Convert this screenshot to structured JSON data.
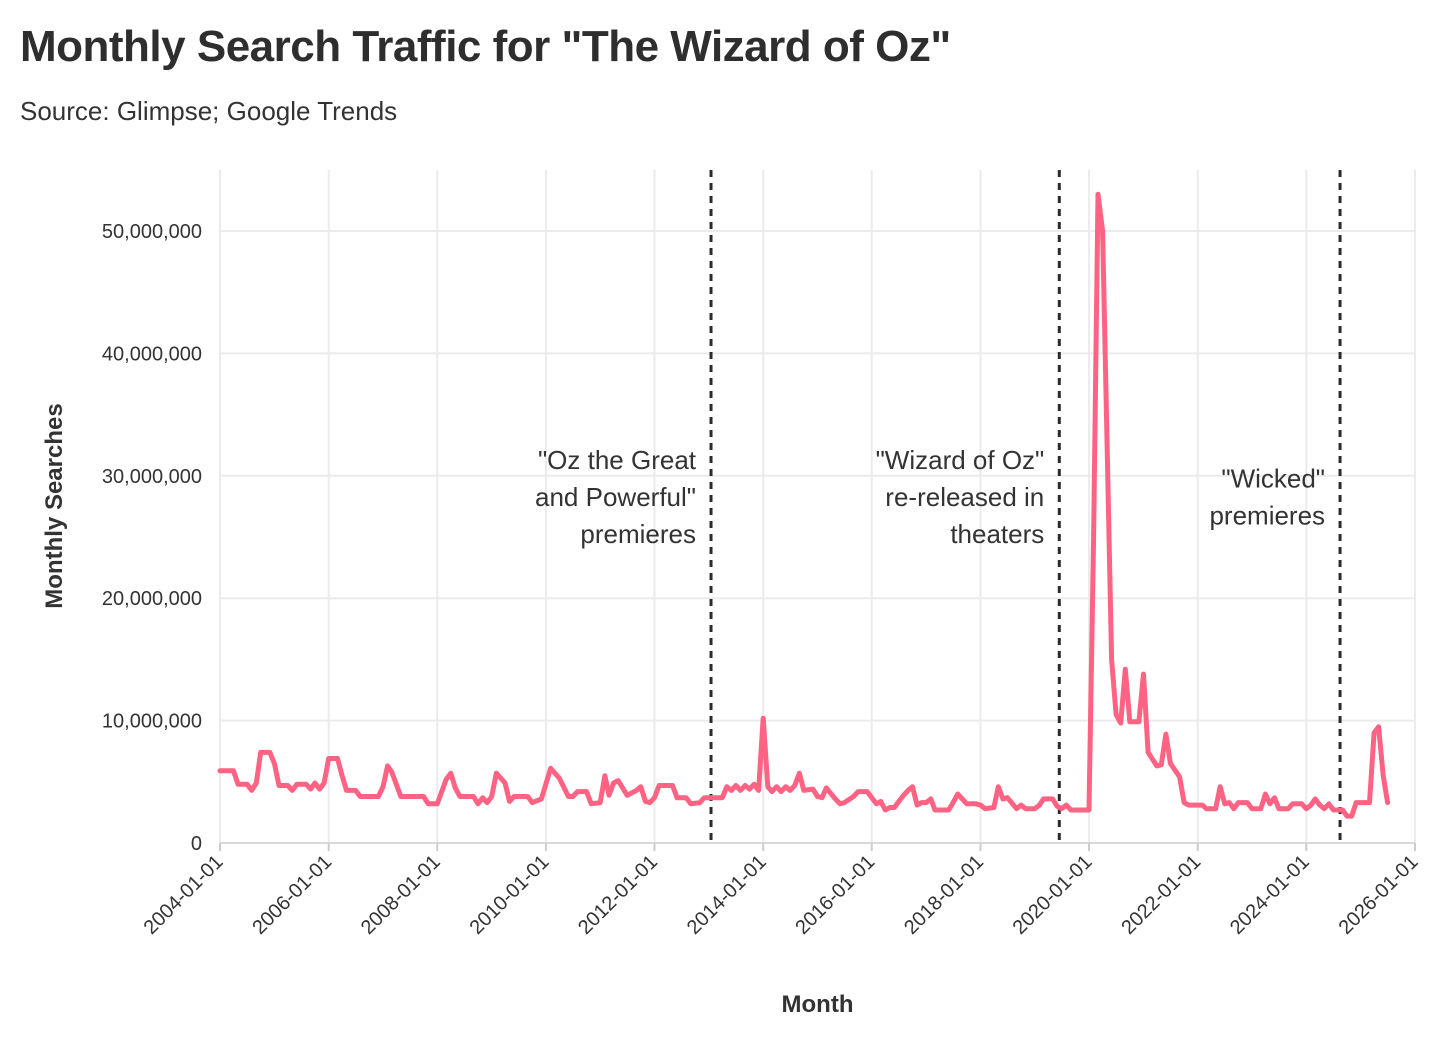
{
  "header": {
    "title": "Monthly Search Traffic for \"The Wizard of Oz\"",
    "subtitle": "Source: Glimpse; Google Trends"
  },
  "chart_data": {
    "type": "line",
    "xlabel": "Month",
    "ylabel": "Monthly Searches",
    "xlim": [
      "2004-01-01",
      "2026-01-01"
    ],
    "ylim": [
      0,
      55000000
    ],
    "x_ticks": [
      "2004-01-01",
      "2006-01-01",
      "2008-01-01",
      "2010-01-01",
      "2012-01-01",
      "2014-01-01",
      "2016-01-01",
      "2018-01-01",
      "2020-01-01",
      "2022-01-01",
      "2024-01-01",
      "2026-01-01"
    ],
    "y_ticks": [
      0,
      10000000,
      20000000,
      30000000,
      40000000,
      50000000
    ],
    "y_tick_labels": [
      "0",
      "10,000,000",
      "20,000,000",
      "30,000,000",
      "40,000,000",
      "50,000,000"
    ],
    "grid": true,
    "line_color": "#ff6384",
    "series": [
      {
        "points": [
          [
            "2004-01-01",
            5900000
          ],
          [
            "2004-04-01",
            5900000
          ],
          [
            "2004-05-01",
            4800000
          ],
          [
            "2004-07-01",
            4800000
          ],
          [
            "2004-08-01",
            4300000
          ],
          [
            "2004-09-01",
            4900000
          ],
          [
            "2004-10-01",
            7400000
          ],
          [
            "2004-12-01",
            7400000
          ],
          [
            "2005-01-01",
            6500000
          ],
          [
            "2005-02-01",
            4700000
          ],
          [
            "2005-04-01",
            4700000
          ],
          [
            "2005-05-01",
            4300000
          ],
          [
            "2005-06-01",
            4800000
          ],
          [
            "2005-08-01",
            4800000
          ],
          [
            "2005-09-01",
            4400000
          ],
          [
            "2005-10-01",
            4900000
          ],
          [
            "2005-11-01",
            4400000
          ],
          [
            "2005-12-01",
            4900000
          ],
          [
            "2006-01-01",
            6900000
          ],
          [
            "2006-03-01",
            6900000
          ],
          [
            "2006-04-01",
            5500000
          ],
          [
            "2006-05-01",
            4300000
          ],
          [
            "2006-07-01",
            4300000
          ],
          [
            "2006-08-01",
            3800000
          ],
          [
            "2006-12-01",
            3800000
          ],
          [
            "2007-01-01",
            4600000
          ],
          [
            "2007-02-01",
            6300000
          ],
          [
            "2007-03-01",
            5800000
          ],
          [
            "2007-05-01",
            3800000
          ],
          [
            "2007-10-01",
            3800000
          ],
          [
            "2007-11-01",
            3200000
          ],
          [
            "2008-01-01",
            3200000
          ],
          [
            "2008-03-01",
            5200000
          ],
          [
            "2008-04-01",
            5700000
          ],
          [
            "2008-05-01",
            4500000
          ],
          [
            "2008-06-01",
            3800000
          ],
          [
            "2008-09-01",
            3800000
          ],
          [
            "2008-10-01",
            3200000
          ],
          [
            "2008-11-01",
            3700000
          ],
          [
            "2008-12-01",
            3300000
          ],
          [
            "2009-01-01",
            3800000
          ],
          [
            "2009-02-01",
            5700000
          ],
          [
            "2009-04-01",
            4900000
          ],
          [
            "2009-05-01",
            3400000
          ],
          [
            "2009-06-01",
            3800000
          ],
          [
            "2009-09-01",
            3800000
          ],
          [
            "2009-10-01",
            3300000
          ],
          [
            "2009-12-01",
            3600000
          ],
          [
            "2010-02-01",
            6100000
          ],
          [
            "2010-04-01",
            5300000
          ],
          [
            "2010-06-01",
            3800000
          ],
          [
            "2010-07-01",
            3800000
          ],
          [
            "2010-08-01",
            4200000
          ],
          [
            "2010-10-01",
            4200000
          ],
          [
            "2010-11-01",
            3200000
          ],
          [
            "2011-01-01",
            3300000
          ],
          [
            "2011-02-01",
            5500000
          ],
          [
            "2011-03-01",
            3900000
          ],
          [
            "2011-04-01",
            4900000
          ],
          [
            "2011-05-01",
            5100000
          ],
          [
            "2011-07-01",
            3900000
          ],
          [
            "2011-09-01",
            4300000
          ],
          [
            "2011-10-01",
            4600000
          ],
          [
            "2011-11-01",
            3400000
          ],
          [
            "2011-12-01",
            3300000
          ],
          [
            "2012-01-01",
            3700000
          ],
          [
            "2012-02-01",
            4700000
          ],
          [
            "2012-05-01",
            4700000
          ],
          [
            "2012-06-01",
            3700000
          ],
          [
            "2012-08-01",
            3700000
          ],
          [
            "2012-09-01",
            3200000
          ],
          [
            "2012-11-01",
            3300000
          ],
          [
            "2012-12-01",
            3700000
          ],
          [
            "2013-04-01",
            3700000
          ],
          [
            "2013-05-01",
            4600000
          ],
          [
            "2013-06-01",
            4300000
          ],
          [
            "2013-07-01",
            4700000
          ],
          [
            "2013-08-01",
            4300000
          ],
          [
            "2013-09-01",
            4700000
          ],
          [
            "2013-10-01",
            4400000
          ],
          [
            "2013-11-01",
            4800000
          ],
          [
            "2013-12-01",
            4300000
          ],
          [
            "2014-01-01",
            10200000
          ],
          [
            "2014-02-01",
            4600000
          ],
          [
            "2014-03-01",
            4200000
          ],
          [
            "2014-04-01",
            4600000
          ],
          [
            "2014-05-01",
            4200000
          ],
          [
            "2014-06-01",
            4600000
          ],
          [
            "2014-07-01",
            4300000
          ],
          [
            "2014-08-01",
            4700000
          ],
          [
            "2014-09-01",
            5700000
          ],
          [
            "2014-10-01",
            4300000
          ],
          [
            "2014-12-01",
            4400000
          ],
          [
            "2015-01-01",
            3800000
          ],
          [
            "2015-02-01",
            3700000
          ],
          [
            "2015-03-01",
            4500000
          ],
          [
            "2015-05-01",
            3600000
          ],
          [
            "2015-06-01",
            3200000
          ],
          [
            "2015-07-01",
            3300000
          ],
          [
            "2015-09-01",
            3800000
          ],
          [
            "2015-10-01",
            4200000
          ],
          [
            "2015-12-01",
            4200000
          ],
          [
            "2016-01-01",
            3700000
          ],
          [
            "2016-02-01",
            3200000
          ],
          [
            "2016-03-01",
            3400000
          ],
          [
            "2016-04-01",
            2700000
          ],
          [
            "2016-05-01",
            2900000
          ],
          [
            "2016-06-01",
            2900000
          ],
          [
            "2016-07-01",
            3400000
          ],
          [
            "2016-08-01",
            3900000
          ],
          [
            "2016-09-01",
            4300000
          ],
          [
            "2016-10-01",
            4600000
          ],
          [
            "2016-11-01",
            3100000
          ],
          [
            "2016-12-01",
            3300000
          ],
          [
            "2017-01-01",
            3300000
          ],
          [
            "2017-02-01",
            3600000
          ],
          [
            "2017-03-01",
            2700000
          ],
          [
            "2017-06-01",
            2700000
          ],
          [
            "2017-07-01",
            3300000
          ],
          [
            "2017-08-01",
            4000000
          ],
          [
            "2017-10-01",
            3200000
          ],
          [
            "2017-12-01",
            3200000
          ],
          [
            "2018-01-01",
            3100000
          ],
          [
            "2018-02-01",
            2800000
          ],
          [
            "2018-04-01",
            2900000
          ],
          [
            "2018-05-01",
            4600000
          ],
          [
            "2018-06-01",
            3600000
          ],
          [
            "2018-07-01",
            3700000
          ],
          [
            "2018-09-01",
            2800000
          ],
          [
            "2018-10-01",
            3100000
          ],
          [
            "2018-11-01",
            2800000
          ],
          [
            "2019-01-01",
            2800000
          ],
          [
            "2019-02-01",
            3100000
          ],
          [
            "2019-03-01",
            3600000
          ],
          [
            "2019-05-01",
            3600000
          ],
          [
            "2019-06-01",
            3000000
          ],
          [
            "2019-07-01",
            2800000
          ],
          [
            "2019-08-01",
            3100000
          ],
          [
            "2019-09-01",
            2700000
          ],
          [
            "2019-12-01",
            2700000
          ],
          [
            "2020-01-01",
            2700000
          ],
          [
            "2020-02-01",
            25000000
          ],
          [
            "2020-03-01",
            53000000
          ],
          [
            "2020-04-01",
            50000000
          ],
          [
            "2020-06-01",
            15000000
          ],
          [
            "2020-07-01",
            10500000
          ],
          [
            "2020-08-01",
            9800000
          ],
          [
            "2020-09-01",
            14200000
          ],
          [
            "2020-10-01",
            9900000
          ],
          [
            "2020-12-01",
            9900000
          ],
          [
            "2021-01-01",
            13800000
          ],
          [
            "2021-02-01",
            7400000
          ],
          [
            "2021-04-01",
            6300000
          ],
          [
            "2021-05-01",
            6400000
          ],
          [
            "2021-06-01",
            8900000
          ],
          [
            "2021-07-01",
            6500000
          ],
          [
            "2021-09-01",
            5400000
          ],
          [
            "2021-10-01",
            3300000
          ],
          [
            "2021-11-01",
            3100000
          ],
          [
            "2022-02-01",
            3100000
          ],
          [
            "2022-03-01",
            2800000
          ],
          [
            "2022-05-01",
            2800000
          ],
          [
            "2022-06-01",
            4600000
          ],
          [
            "2022-07-01",
            3200000
          ],
          [
            "2022-08-01",
            3300000
          ],
          [
            "2022-09-01",
            2800000
          ],
          [
            "2022-10-01",
            3300000
          ],
          [
            "2022-12-01",
            3300000
          ],
          [
            "2023-01-01",
            2800000
          ],
          [
            "2023-03-01",
            2800000
          ],
          [
            "2023-04-01",
            4000000
          ],
          [
            "2023-05-01",
            3200000
          ],
          [
            "2023-06-01",
            3700000
          ],
          [
            "2023-07-01",
            2800000
          ],
          [
            "2023-09-01",
            2800000
          ],
          [
            "2023-10-01",
            3200000
          ],
          [
            "2023-12-01",
            3200000
          ],
          [
            "2024-01-01",
            2800000
          ],
          [
            "2024-02-01",
            3100000
          ],
          [
            "2024-03-01",
            3600000
          ],
          [
            "2024-04-01",
            3100000
          ],
          [
            "2024-05-01",
            2800000
          ],
          [
            "2024-06-01",
            3200000
          ],
          [
            "2024-07-01",
            2700000
          ],
          [
            "2024-09-01",
            2700000
          ],
          [
            "2024-10-01",
            2200000
          ],
          [
            "2024-11-01",
            2200000
          ],
          [
            "2024-12-01",
            3300000
          ],
          [
            "2025-03-01",
            3300000
          ],
          [
            "2025-04-01",
            9000000
          ],
          [
            "2025-05-01",
            9500000
          ],
          [
            "2025-06-01",
            5500000
          ],
          [
            "2025-07-01",
            3300000
          ]
        ]
      }
    ],
    "annotations": [
      {
        "x": "2013-01-15",
        "lines": [
          "\"Oz the Great",
          "and Powerful\"",
          "premieres"
        ]
      },
      {
        "x": "2019-06-15",
        "lines": [
          "\"Wizard of Oz\"",
          "re-released in",
          "theaters"
        ]
      },
      {
        "x": "2024-08-15",
        "lines": [
          "\"Wicked\"",
          "premieres"
        ]
      }
    ]
  }
}
